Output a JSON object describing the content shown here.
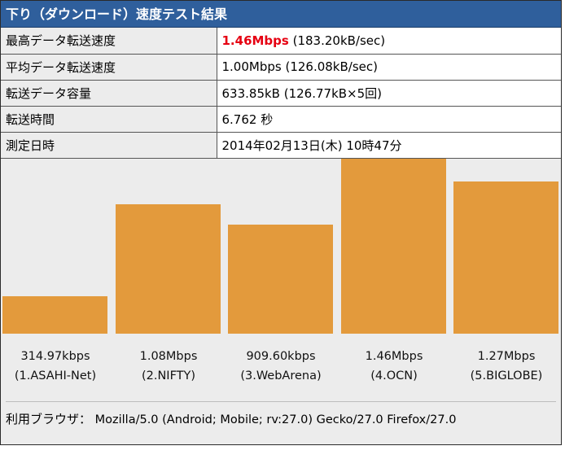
{
  "header": {
    "title": "下り（ダウンロード）速度テスト結果"
  },
  "info": {
    "rows": [
      {
        "label": "最高データ転送速度",
        "value_highlight": "1.46Mbps",
        "value_rest": " (183.20kB/sec)"
      },
      {
        "label": "平均データ転送速度",
        "value": "1.00Mbps (126.08kB/sec)"
      },
      {
        "label": "転送データ容量",
        "value": "633.85kB (126.77kB×5回)"
      },
      {
        "label": "転送時間",
        "value": "6.762 秒"
      },
      {
        "label": "測定日時",
        "value": "2014年02月13日(木) 10時47分"
      }
    ]
  },
  "colors": {
    "bar": "#e39a3c",
    "header_bg": "#2f5f9c",
    "highlight": "#e60012"
  },
  "chart_data": {
    "type": "bar",
    "categories": [
      "1.ASAHI-Net",
      "2.NIFTY",
      "3.WebArena",
      "4.OCN",
      "5.BIGLOBE"
    ],
    "values": [
      314.97,
      1080,
      909.6,
      1460,
      1270
    ],
    "value_labels": [
      "314.97kbps",
      "1.08Mbps",
      "909.60kbps",
      "1.46Mbps",
      "1.27Mbps"
    ],
    "category_labels": [
      "(1.ASAHI-Net)",
      "(2.NIFTY)",
      "(3.WebArena)",
      "(4.OCN)",
      "(5.BIGLOBE)"
    ],
    "ylim": [
      0,
      1460
    ],
    "grid": false
  },
  "browser": {
    "label": "利用ブラウザ：",
    "value": " Mozilla/5.0 (Android; Mobile; rv:27.0) Gecko/27.0 Firefox/27.0"
  }
}
